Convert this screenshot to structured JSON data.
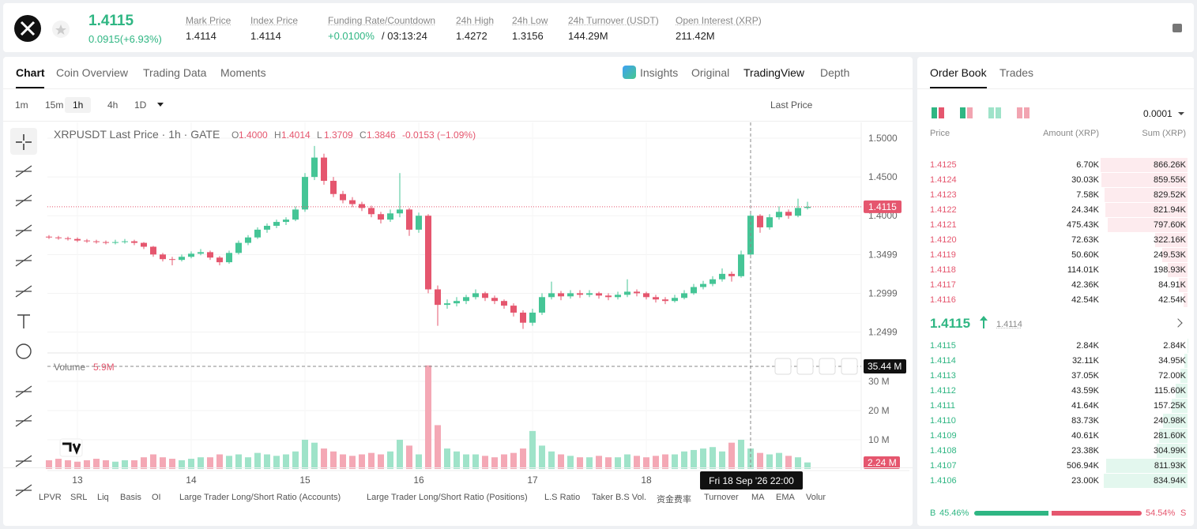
{
  "header": {
    "price": "1.4115",
    "change": "0.0915(+6.93%)",
    "stats": [
      {
        "label": "Mark Price",
        "value": "1.4114"
      },
      {
        "label": "Index Price",
        "value": "1.4114"
      },
      {
        "label": "Funding Rate/Countdown",
        "value": "+0.0100%",
        "extra": "/ 03:13:24"
      },
      {
        "label": "24h High",
        "value": "1.4272"
      },
      {
        "label": "24h Low",
        "value": "1.3156"
      },
      {
        "label": "24h Turnover (USDT)",
        "value": "144.29M"
      },
      {
        "label": "Open Interest (XRP)",
        "value": "211.42M"
      }
    ]
  },
  "tabs": [
    "Chart",
    "Coin Overview",
    "Trading Data",
    "Moments"
  ],
  "views": [
    "Insights",
    "Original",
    "TradingView",
    "Depth"
  ],
  "intervals": [
    "1m",
    "15m",
    "1h",
    "4h",
    "1D"
  ],
  "price_type": "Last Price",
  "chart_data": {
    "type": "candlestick",
    "title": "XRPUSDT Last Price · 1h · GATE",
    "ohlc": [
      {
        "k": "O",
        "v": "1.4000"
      },
      {
        "k": "H",
        "v": "1.4014"
      },
      {
        "k": "L",
        "v": "1.3709"
      },
      {
        "k": "C",
        "v": "1.3846"
      }
    ],
    "change": "-0.0153 (−1.09%)",
    "volume_label": "Volume",
    "volume_value": "5.9M",
    "candles": [
      [
        -6,
        1.373,
        1.375,
        1.37,
        1.372
      ],
      [
        -4,
        1.372,
        1.374,
        1.369,
        1.371
      ],
      [
        -2,
        1.371,
        1.373,
        1.368,
        1.37
      ],
      [
        0,
        1.37,
        1.372,
        1.366,
        1.368
      ],
      [
        2,
        1.368,
        1.37,
        1.365,
        1.367
      ],
      [
        4,
        1.367,
        1.369,
        1.364,
        1.366
      ],
      [
        6,
        1.366,
        1.368,
        1.363,
        1.365
      ],
      [
        8,
        1.365,
        1.369,
        1.363,
        1.366
      ],
      [
        10,
        1.366,
        1.37,
        1.364,
        1.367
      ],
      [
        12,
        1.367,
        1.369,
        1.362,
        1.365
      ],
      [
        14,
        1.365,
        1.366,
        1.357,
        1.36
      ],
      [
        16,
        1.36,
        1.361,
        1.347,
        1.35
      ],
      [
        18,
        1.35,
        1.352,
        1.341,
        1.344
      ],
      [
        20,
        1.344,
        1.347,
        1.336,
        1.343
      ],
      [
        22,
        1.343,
        1.35,
        1.341,
        1.347
      ],
      [
        24,
        1.347,
        1.354,
        1.345,
        1.351
      ],
      [
        26,
        1.351,
        1.357,
        1.349,
        1.353
      ],
      [
        28,
        1.353,
        1.355,
        1.343,
        1.346
      ],
      [
        30,
        1.346,
        1.348,
        1.336,
        1.34
      ],
      [
        32,
        1.34,
        1.355,
        1.338,
        1.352
      ],
      [
        34,
        1.352,
        1.368,
        1.35,
        1.365
      ],
      [
        36,
        1.365,
        1.375,
        1.362,
        1.372
      ],
      [
        38,
        1.372,
        1.385,
        1.37,
        1.382
      ],
      [
        40,
        1.382,
        1.39,
        1.378,
        1.387
      ],
      [
        42,
        1.387,
        1.395,
        1.384,
        1.392
      ],
      [
        44,
        1.392,
        1.398,
        1.388,
        1.395
      ],
      [
        46,
        1.395,
        1.412,
        1.393,
        1.408
      ],
      [
        48,
        1.408,
        1.455,
        1.405,
        1.45
      ],
      [
        50,
        1.45,
        1.49,
        1.446,
        1.475
      ],
      [
        52,
        1.475,
        1.48,
        1.44,
        1.445
      ],
      [
        54,
        1.445,
        1.45,
        1.424,
        1.428
      ],
      [
        56,
        1.428,
        1.432,
        1.416,
        1.42
      ],
      [
        58,
        1.42,
        1.424,
        1.411,
        1.415
      ],
      [
        60,
        1.415,
        1.418,
        1.406,
        1.41
      ],
      [
        62,
        1.41,
        1.413,
        1.398,
        1.402
      ],
      [
        64,
        1.402,
        1.405,
        1.39,
        1.395
      ],
      [
        66,
        1.395,
        1.408,
        1.392,
        1.403
      ],
      [
        68,
        1.403,
        1.455,
        1.398,
        1.408
      ],
      [
        70,
        1.408,
        1.41,
        1.374,
        1.382
      ],
      [
        72,
        1.382,
        1.404,
        1.378,
        1.4
      ],
      [
        74,
        1.4,
        1.402,
        1.3,
        1.305
      ],
      [
        76,
        1.305,
        1.31,
        1.258,
        1.285
      ],
      [
        78,
        1.285,
        1.292,
        1.28,
        1.287
      ],
      [
        80,
        1.287,
        1.295,
        1.283,
        1.29
      ],
      [
        82,
        1.29,
        1.298,
        1.286,
        1.295
      ],
      [
        84,
        1.295,
        1.305,
        1.292,
        1.3
      ],
      [
        86,
        1.3,
        1.302,
        1.29,
        1.294
      ],
      [
        88,
        1.294,
        1.297,
        1.286,
        1.29
      ],
      [
        90,
        1.29,
        1.292,
        1.28,
        1.284
      ],
      [
        92,
        1.284,
        1.287,
        1.27,
        1.275
      ],
      [
        94,
        1.275,
        1.278,
        1.254,
        1.262
      ],
      [
        96,
        1.262,
        1.28,
        1.258,
        1.275
      ],
      [
        98,
        1.275,
        1.3,
        1.272,
        1.295
      ],
      [
        100,
        1.295,
        1.315,
        1.292,
        1.3
      ],
      [
        102,
        1.3,
        1.303,
        1.291,
        1.296
      ],
      [
        104,
        1.296,
        1.304,
        1.293,
        1.3
      ],
      [
        106,
        1.3,
        1.304,
        1.294,
        1.298
      ],
      [
        108,
        1.298,
        1.304,
        1.295,
        1.3
      ],
      [
        110,
        1.3,
        1.302,
        1.293,
        1.297
      ],
      [
        112,
        1.297,
        1.3,
        1.291,
        1.295
      ],
      [
        114,
        1.295,
        1.302,
        1.292,
        1.298
      ],
      [
        116,
        1.298,
        1.318,
        1.295,
        1.302
      ],
      [
        118,
        1.302,
        1.305,
        1.296,
        1.3
      ],
      [
        120,
        1.3,
        1.302,
        1.292,
        1.295
      ],
      [
        122,
        1.295,
        1.298,
        1.288,
        1.292
      ],
      [
        124,
        1.292,
        1.295,
        1.286,
        1.29
      ],
      [
        126,
        1.29,
        1.298,
        1.288,
        1.294
      ],
      [
        128,
        1.294,
        1.304,
        1.292,
        1.3
      ],
      [
        130,
        1.3,
        1.312,
        1.298,
        1.308
      ],
      [
        132,
        1.308,
        1.316,
        1.305,
        1.312
      ],
      [
        134,
        1.312,
        1.322,
        1.309,
        1.318
      ],
      [
        136,
        1.318,
        1.332,
        1.315,
        1.325
      ],
      [
        138,
        1.325,
        1.328,
        1.315,
        1.322
      ],
      [
        140,
        1.322,
        1.355,
        1.32,
        1.35
      ],
      [
        142,
        1.35,
        1.405,
        1.345,
        1.4
      ],
      [
        144,
        1.4,
        1.402,
        1.378,
        1.385
      ],
      [
        146,
        1.385,
        1.402,
        1.382,
        1.398
      ],
      [
        148,
        1.398,
        1.412,
        1.395,
        1.405
      ],
      [
        150,
        1.405,
        1.408,
        1.396,
        1.4
      ],
      [
        152,
        1.4,
        1.422,
        1.398,
        1.41
      ],
      [
        154,
        1.41,
        1.418,
        1.408,
        1.4115
      ]
    ],
    "volumes": [
      3,
      3.5,
      3,
      2.5,
      3,
      3.5,
      3,
      2.5,
      3,
      3,
      4,
      5,
      4,
      3.5,
      3,
      3.5,
      4,
      4,
      5,
      4.5,
      5,
      4,
      5.5,
      5,
      4.5,
      5,
      6,
      10,
      9,
      7,
      6,
      5,
      4.5,
      5,
      5.5,
      5,
      6,
      10,
      8,
      5,
      35.44,
      15,
      7,
      6,
      5,
      5,
      4.5,
      4,
      5,
      5.5,
      7,
      13,
      8,
      6,
      5,
      4.5,
      4,
      4,
      4.5,
      4,
      4,
      5,
      4.5,
      4,
      4.5,
      5,
      5,
      6,
      6.5,
      7,
      7.5,
      6,
      9,
      10,
      7,
      5.5,
      5,
      5.5,
      4.5,
      4,
      2.24
    ],
    "xlim": [
      -6.33,
      165.33
    ],
    "xticks": [
      {
        "value": 0,
        "label": "13"
      },
      {
        "value": 24,
        "label": "14"
      },
      {
        "value": 48,
        "label": "15"
      },
      {
        "value": 72,
        "label": "16"
      },
      {
        "value": 96,
        "label": "17"
      },
      {
        "value": 120,
        "label": "18"
      }
    ],
    "ylim": [
      1.223,
      1.5204
    ],
    "yticks": [
      {
        "value": 1.5,
        "label": "1.5000"
      },
      {
        "value": 1.45,
        "label": "1.4500"
      },
      {
        "value": 1.4,
        "label": "1.4000"
      },
      {
        "value": 1.3499,
        "label": "1.3499"
      },
      {
        "value": 1.2999,
        "label": "1.2999"
      },
      {
        "value": 1.2499,
        "label": "1.2499"
      }
    ],
    "vylim": [
      0,
      39.7
    ],
    "vyticks": [
      {
        "value": 10,
        "label": "10 M"
      },
      {
        "value": 20,
        "label": "20 M"
      },
      {
        "value": 30,
        "label": "30 M"
      }
    ],
    "last_price": "1.4115",
    "last_volume": "2.24 M",
    "crosshair_volume": "35.44 M",
    "crosshair_time": "Fri 18 Sep '26   22:00",
    "up_color": "#45c596",
    "down_color": "#e5566e",
    "up_volume_color": "#9fe3c9",
    "down_volume_color": "#f4a8b5",
    "grid": true
  },
  "indicators": [
    "LPVR",
    "SRL",
    "Liq",
    "Basis",
    "OI",
    "Large Trader Long/Short Ratio (Accounts)",
    "Large Trader Long/Short Ratio (Positions)",
    "L.S Ratio",
    "Taker B.S Vol.",
    "资金费率",
    "Turnover",
    "MA",
    "EMA",
    "Volume"
  ],
  "order_book": {
    "tabs": [
      "Order Book",
      "Trades"
    ],
    "precision": "0.0001",
    "columns": [
      "Price",
      "Amount (XRP)",
      "Sum (XRP)"
    ],
    "asks": [
      {
        "price": "1.4125",
        "amount": "6.70K",
        "sum": {
          "value": 866.26,
          "label": "866.26K"
        }
      },
      {
        "price": "1.4124",
        "amount": "30.03K",
        "sum": {
          "value": 859.55,
          "label": "859.55K"
        }
      },
      {
        "price": "1.4123",
        "amount": "7.58K",
        "sum": {
          "value": 829.52,
          "label": "829.52K"
        }
      },
      {
        "price": "1.4122",
        "amount": "24.34K",
        "sum": {
          "value": 821.94,
          "label": "821.94K"
        }
      },
      {
        "price": "1.4121",
        "amount": "475.43K",
        "sum": {
          "value": 797.6,
          "label": "797.60K"
        }
      },
      {
        "price": "1.4120",
        "amount": "72.63K",
        "sum": {
          "value": 322.16,
          "label": "322.16K"
        }
      },
      {
        "price": "1.4119",
        "amount": "50.60K",
        "sum": {
          "value": 249.53,
          "label": "249.53K"
        }
      },
      {
        "price": "1.4118",
        "amount": "114.01K",
        "sum": {
          "value": 198.93,
          "label": "198.93K"
        }
      },
      {
        "price": "1.4117",
        "amount": "42.36K",
        "sum": {
          "value": 84.91,
          "label": "84.91K"
        }
      },
      {
        "price": "1.4116",
        "amount": "42.54K",
        "sum": {
          "value": 42.54,
          "label": "42.54K"
        }
      }
    ],
    "mid": "1.4115",
    "mark": "1.4114",
    "bids": [
      {
        "price": "1.4115",
        "amount": "2.84K",
        "sum": {
          "value": 2.84,
          "label": "2.84K"
        }
      },
      {
        "price": "1.4114",
        "amount": "32.11K",
        "sum": {
          "value": 34.95,
          "label": "34.95K"
        }
      },
      {
        "price": "1.4113",
        "amount": "37.05K",
        "sum": {
          "value": 72.0,
          "label": "72.00K"
        }
      },
      {
        "price": "1.4112",
        "amount": "43.59K",
        "sum": {
          "value": 115.6,
          "label": "115.60K"
        }
      },
      {
        "price": "1.4111",
        "amount": "41.64K",
        "sum": {
          "value": 157.25,
          "label": "157.25K"
        }
      },
      {
        "price": "1.4110",
        "amount": "83.73K",
        "sum": {
          "value": 240.98,
          "label": "240.98K"
        }
      },
      {
        "price": "1.4109",
        "amount": "40.61K",
        "sum": {
          "value": 281.6,
          "label": "281.60K"
        }
      },
      {
        "price": "1.4108",
        "amount": "23.38K",
        "sum": {
          "value": 304.99,
          "label": "304.99K"
        }
      },
      {
        "price": "1.4107",
        "amount": "506.94K",
        "sum": {
          "value": 811.93,
          "label": "811.93K"
        }
      },
      {
        "price": "1.4106",
        "amount": "23.00K",
        "sum": {
          "value": 834.94,
          "label": "834.94K"
        }
      }
    ],
    "buy_tag": "B",
    "sell_tag": "S",
    "buy": {
      "value": 45.46,
      "label": "45.46%"
    },
    "sell": {
      "value": 54.54,
      "label": "54.54%"
    }
  }
}
